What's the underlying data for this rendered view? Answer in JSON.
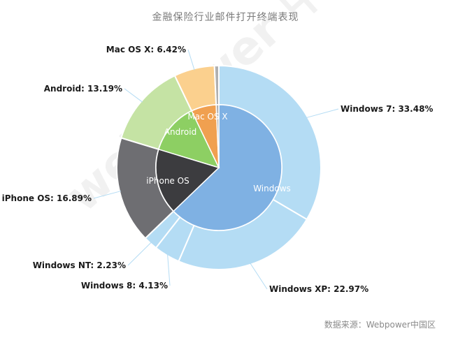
{
  "chart_data": {
    "type": "pie",
    "title": "金融保险行业邮件打开终端表现",
    "inner": [
      {
        "name": "Windows",
        "value": 62.81,
        "color": "#7fb1e3"
      },
      {
        "name": "iPhone OS",
        "value": 16.89,
        "color": "#3c3c3f"
      },
      {
        "name": "Android",
        "value": 13.19,
        "color": "#8dcf63"
      },
      {
        "name": "Mac OS X",
        "value": 6.42,
        "color": "#f0a050"
      },
      {
        "name": "",
        "value": 0.69,
        "color": "#b0b0b0"
      }
    ],
    "outer": [
      {
        "label": "Windows 7: 33.48%",
        "value": 33.48,
        "color": "#b4dcf4"
      },
      {
        "label": "Windows XP: 22.97%",
        "value": 22.97,
        "color": "#b4dcf4"
      },
      {
        "label": "Windows 8: 4.13%",
        "value": 4.13,
        "color": "#b4dcf4"
      },
      {
        "label": "Windows NT: 2.23%",
        "value": 2.23,
        "color": "#b4dcf4"
      },
      {
        "label": "iPhone OS: 16.89%",
        "value": 16.89,
        "color": "#6e6e72"
      },
      {
        "label": "Android: 13.19%",
        "value": 13.19,
        "color": "#c5e3a4"
      },
      {
        "label": "Mac OS X: 6.42%",
        "value": 6.42,
        "color": "#fbd08e"
      },
      {
        "label": "",
        "value": 0.69,
        "color": "#b0b0b0"
      }
    ]
  },
  "source": "数据来源：Webpower中国区",
  "watermark": "webpower 中国区"
}
